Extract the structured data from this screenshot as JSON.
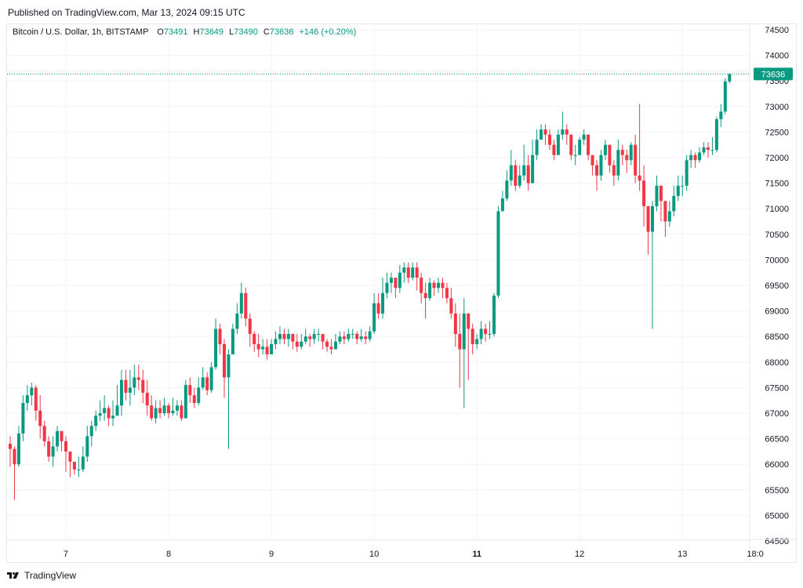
{
  "header": {
    "published": "Published on TradingView.com, Mar 13, 2024 09:15 UTC"
  },
  "legend": {
    "symbol": "Bitcoin / U.S. Dollar, 1h, BITSTAMP",
    "open_label": "O",
    "open": "73491",
    "high_label": "H",
    "high": "73649",
    "low_label": "L",
    "low": "73490",
    "close_label": "C",
    "close": "73636",
    "change": "+146 (+0.20%)"
  },
  "footer": {
    "brand": "TradingView"
  },
  "colors": {
    "up": "#089981",
    "down": "#f23645",
    "grid": "#f0f3fa"
  },
  "chart_data": {
    "type": "candlestick",
    "title": "Bitcoin / U.S. Dollar, 1h, BITSTAMP",
    "ylim": [
      64500,
      74500
    ],
    "yticks": [
      74500,
      74000,
      73500,
      73000,
      72500,
      72000,
      71500,
      71000,
      70500,
      70000,
      69500,
      69000,
      68500,
      68000,
      67500,
      67000,
      66500,
      66000,
      65500,
      65000,
      64500
    ],
    "xticks": [
      {
        "label": "7",
        "bar": 13,
        "bold": false
      },
      {
        "label": "8",
        "bar": 37,
        "bold": false
      },
      {
        "label": "9",
        "bar": 61,
        "bold": false
      },
      {
        "label": "10",
        "bar": 85,
        "bold": false
      },
      {
        "label": "11",
        "bar": 109,
        "bold": true
      },
      {
        "label": "12",
        "bar": 133,
        "bold": false
      },
      {
        "label": "13",
        "bar": 157,
        "bold": false
      },
      {
        "label": "18:0",
        "bar": 174,
        "bold": false
      }
    ],
    "last_price": 73636,
    "last_price_label": "73636",
    "closes": [
      66300,
      66000,
      66600,
      67200,
      67350,
      67500,
      67050,
      66750,
      66450,
      66150,
      66350,
      66650,
      66450,
      66250,
      66050,
      65900,
      65900,
      66150,
      66550,
      66750,
      66950,
      67000,
      67100,
      66900,
      66950,
      67150,
      67650,
      67400,
      67500,
      67700,
      67650,
      67400,
      67150,
      66900,
      67100,
      67000,
      67150,
      67000,
      67050,
      67150,
      66900,
      67550,
      67350,
      67200,
      67500,
      67700,
      67450,
      67900,
      68650,
      68350,
      67700,
      68150,
      68650,
      68950,
      69350,
      68850,
      68550,
      68350,
      68250,
      68300,
      68150,
      68350,
      68450,
      68550,
      68450,
      68550,
      68400,
      68300,
      68400,
      68500,
      68450,
      68550,
      68550,
      68400,
      68300,
      68250,
      68400,
      68500,
      68450,
      68550,
      68550,
      68450,
      68500,
      68450,
      68600,
      69150,
      68950,
      69350,
      69550,
      69650,
      69450,
      69750,
      69850,
      69650,
      69850,
      69650,
      69350,
      69250,
      69550,
      69450,
      69550,
      69450,
      69250,
      68950,
      68550,
      68250,
      68950,
      68650,
      68350,
      68450,
      68650,
      68550,
      68550,
      69300,
      70950,
      71200,
      71550,
      71850,
      71450,
      71650,
      71850,
      71500,
      72050,
      72350,
      72550,
      72450,
      72250,
      72050,
      72450,
      72550,
      72450,
      72050,
      72050,
      72350,
      72450,
      72050,
      71850,
      71650,
      72050,
      72250,
      71850,
      71650,
      72150,
      72050,
      71950,
      72250,
      71650,
      71550,
      71050,
      70550,
      71050,
      71450,
      71150,
      70750,
      70950,
      71250,
      71450,
      71450,
      71950,
      72050,
      71950,
      72100,
      72200,
      72150,
      72150,
      72750,
      72900,
      73491,
      73636
    ],
    "wicks": [
      [
        65950,
        66550
      ],
      [
        65300,
        66350
      ],
      [
        65950,
        66750
      ],
      [
        66450,
        67350
      ],
      [
        67050,
        67550
      ],
      [
        67150,
        67600
      ],
      [
        66850,
        67550
      ],
      [
        66500,
        67350
      ],
      [
        66350,
        66850
      ],
      [
        66050,
        66550
      ],
      [
        65950,
        66550
      ],
      [
        66250,
        66750
      ],
      [
        66250,
        66650
      ],
      [
        65850,
        66550
      ],
      [
        65750,
        66250
      ],
      [
        65800,
        66050
      ],
      [
        65750,
        66150
      ],
      [
        65850,
        66350
      ],
      [
        66050,
        66750
      ],
      [
        66350,
        66850
      ],
      [
        66650,
        67050
      ],
      [
        66850,
        67250
      ],
      [
        66850,
        67350
      ],
      [
        66750,
        67150
      ],
      [
        66750,
        67250
      ],
      [
        66950,
        67550
      ],
      [
        66950,
        67850
      ],
      [
        67250,
        67850
      ],
      [
        67150,
        67850
      ],
      [
        67350,
        67950
      ],
      [
        67450,
        67950
      ],
      [
        67200,
        67850
      ],
      [
        66950,
        67650
      ],
      [
        66850,
        67350
      ],
      [
        66800,
        67250
      ],
      [
        66900,
        67250
      ],
      [
        66950,
        67300
      ],
      [
        66900,
        67200
      ],
      [
        66950,
        67300
      ],
      [
        66950,
        67250
      ],
      [
        66850,
        67250
      ],
      [
        66950,
        67650
      ],
      [
        67200,
        67700
      ],
      [
        67100,
        67500
      ],
      [
        67150,
        67700
      ],
      [
        67450,
        67900
      ],
      [
        67350,
        67800
      ],
      [
        67400,
        68000
      ],
      [
        67850,
        68850
      ],
      [
        68150,
        68750
      ],
      [
        67300,
        68450
      ],
      [
        66300,
        68250
      ],
      [
        68150,
        68750
      ],
      [
        68550,
        69150
      ],
      [
        68850,
        69550
      ],
      [
        68700,
        69450
      ],
      [
        68300,
        68950
      ],
      [
        68200,
        68600
      ],
      [
        68100,
        68550
      ],
      [
        68150,
        68450
      ],
      [
        68050,
        68450
      ],
      [
        68150,
        68450
      ],
      [
        68250,
        68600
      ],
      [
        68350,
        68700
      ],
      [
        68350,
        68650
      ],
      [
        68300,
        68650
      ],
      [
        68250,
        68500
      ],
      [
        68200,
        68550
      ],
      [
        68250,
        68550
      ],
      [
        68350,
        68650
      ],
      [
        68300,
        68550
      ],
      [
        68350,
        68650
      ],
      [
        68400,
        68650
      ],
      [
        68250,
        68550
      ],
      [
        68200,
        68450
      ],
      [
        68150,
        68450
      ],
      [
        68250,
        68550
      ],
      [
        68350,
        68600
      ],
      [
        68350,
        68600
      ],
      [
        68400,
        68650
      ],
      [
        68450,
        68650
      ],
      [
        68350,
        68600
      ],
      [
        68400,
        68650
      ],
      [
        68350,
        68600
      ],
      [
        68400,
        68700
      ],
      [
        68550,
        69350
      ],
      [
        68850,
        69350
      ],
      [
        68850,
        69650
      ],
      [
        69250,
        69750
      ],
      [
        69350,
        69750
      ],
      [
        69250,
        69650
      ],
      [
        69350,
        69900
      ],
      [
        69550,
        69950
      ],
      [
        69550,
        69950
      ],
      [
        69600,
        69950
      ],
      [
        69400,
        69950
      ],
      [
        69150,
        69750
      ],
      [
        68850,
        69550
      ],
      [
        69200,
        69650
      ],
      [
        69300,
        69600
      ],
      [
        69350,
        69650
      ],
      [
        69250,
        69650
      ],
      [
        69150,
        69550
      ],
      [
        68850,
        69450
      ],
      [
        68300,
        69150
      ],
      [
        67500,
        68950
      ],
      [
        67100,
        69250
      ],
      [
        67650,
        68950
      ],
      [
        68150,
        68750
      ],
      [
        68250,
        68550
      ],
      [
        68350,
        68800
      ],
      [
        68400,
        68750
      ],
      [
        68450,
        68800
      ],
      [
        68500,
        69350
      ],
      [
        69250,
        71050
      ],
      [
        70950,
        71350
      ],
      [
        71150,
        71750
      ],
      [
        71450,
        72150
      ],
      [
        71350,
        71950
      ],
      [
        71400,
        71850
      ],
      [
        71550,
        72250
      ],
      [
        71350,
        72050
      ],
      [
        71550,
        72350
      ],
      [
        71950,
        72550
      ],
      [
        72350,
        72650
      ],
      [
        72250,
        72650
      ],
      [
        72150,
        72550
      ],
      [
        71950,
        72350
      ],
      [
        72050,
        72550
      ],
      [
        72350,
        72900
      ],
      [
        72250,
        72650
      ],
      [
        71950,
        72450
      ],
      [
        71850,
        72250
      ],
      [
        72050,
        72400
      ],
      [
        72250,
        72550
      ],
      [
        71950,
        72450
      ],
      [
        71650,
        72050
      ],
      [
        71350,
        71950
      ],
      [
        71550,
        72150
      ],
      [
        71950,
        72350
      ],
      [
        71700,
        72250
      ],
      [
        71450,
        71950
      ],
      [
        71550,
        72350
      ],
      [
        71850,
        72250
      ],
      [
        71700,
        72150
      ],
      [
        71850,
        72300
      ],
      [
        71500,
        72450
      ],
      [
        71350,
        73050
      ],
      [
        70650,
        71850
      ],
      [
        70100,
        71050
      ],
      [
        68650,
        71150
      ],
      [
        70950,
        71650
      ],
      [
        70750,
        71450
      ],
      [
        70450,
        71150
      ],
      [
        70650,
        71150
      ],
      [
        70850,
        71450
      ],
      [
        71150,
        71650
      ],
      [
        71250,
        71650
      ],
      [
        71350,
        72050
      ],
      [
        71800,
        72150
      ],
      [
        71800,
        72100
      ],
      [
        71900,
        72200
      ],
      [
        72050,
        72300
      ],
      [
        72000,
        72300
      ],
      [
        72050,
        72400
      ],
      [
        72100,
        72800
      ],
      [
        72600,
        73050
      ],
      [
        72850,
        73550
      ],
      [
        73450,
        73650
      ]
    ]
  }
}
